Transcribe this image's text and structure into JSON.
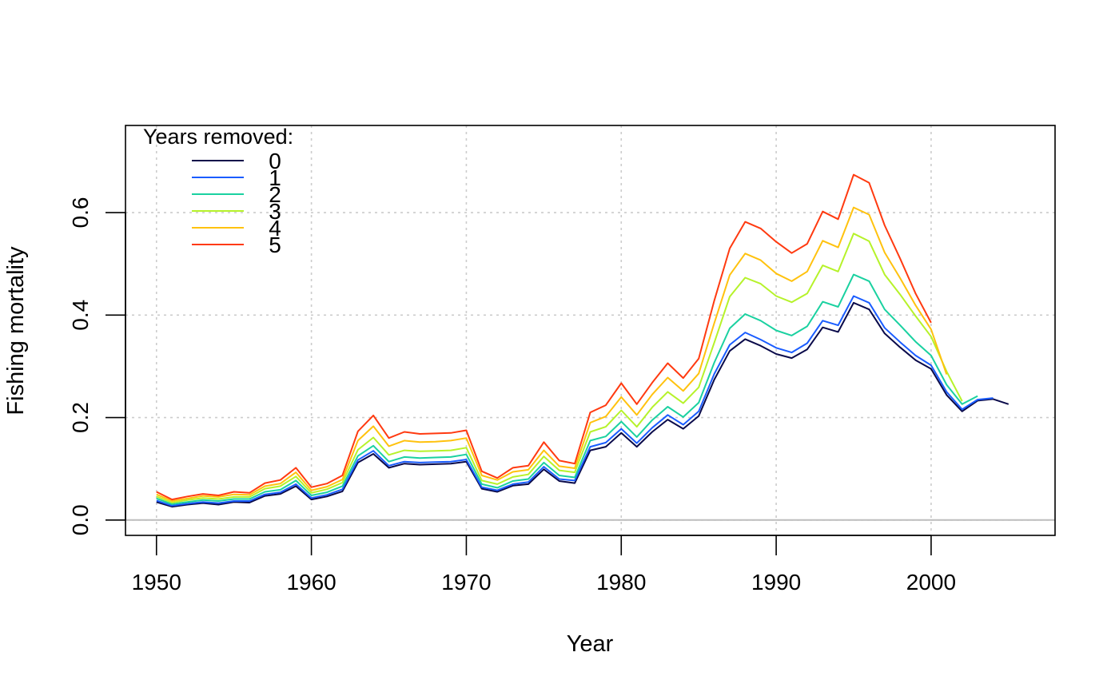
{
  "chart_data": {
    "type": "line",
    "title": "",
    "xlabel": "Year",
    "ylabel": "Fishing mortality",
    "xlim": [
      1948,
      2008
    ],
    "ylim": [
      -0.03,
      0.77
    ],
    "xticks": [
      1950,
      1960,
      1970,
      1980,
      1990,
      2000
    ],
    "xtick_labels": [
      "1950",
      "1960",
      "1970",
      "1980",
      "1990",
      "2000"
    ],
    "yticks": [
      0.0,
      0.2,
      0.4,
      0.6
    ],
    "ytick_labels": [
      "0.0",
      "0.2",
      "0.4",
      "0.6"
    ],
    "grid": true,
    "zero_line": true,
    "legend": {
      "title": "Years removed:",
      "position": "top-left"
    },
    "x_start": 1950,
    "series": [
      {
        "name": "0",
        "color": "#0a0a4a",
        "values": [
          0.035,
          0.026,
          0.03,
          0.033,
          0.03,
          0.035,
          0.034,
          0.047,
          0.051,
          0.066,
          0.04,
          0.046,
          0.056,
          0.112,
          0.129,
          0.102,
          0.11,
          0.108,
          0.109,
          0.11,
          0.114,
          0.061,
          0.055,
          0.067,
          0.07,
          0.099,
          0.076,
          0.072,
          0.136,
          0.143,
          0.17,
          0.143,
          0.172,
          0.196,
          0.178,
          0.203,
          0.274,
          0.33,
          0.353,
          0.34,
          0.324,
          0.316,
          0.333,
          0.376,
          0.367,
          0.424,
          0.411,
          0.364,
          0.337,
          0.312,
          0.295,
          0.244,
          0.212,
          0.233,
          0.236,
          0.226
        ]
      },
      {
        "name": "1",
        "color": "#1a5cff",
        "values": [
          0.038,
          0.028,
          0.032,
          0.035,
          0.033,
          0.037,
          0.037,
          0.05,
          0.054,
          0.07,
          0.043,
          0.049,
          0.06,
          0.117,
          0.135,
          0.106,
          0.114,
          0.112,
          0.113,
          0.114,
          0.118,
          0.064,
          0.058,
          0.07,
          0.074,
          0.104,
          0.08,
          0.077,
          0.143,
          0.151,
          0.178,
          0.15,
          0.18,
          0.205,
          0.186,
          0.212,
          0.285,
          0.342,
          0.366,
          0.352,
          0.336,
          0.327,
          0.345,
          0.389,
          0.38,
          0.437,
          0.424,
          0.375,
          0.347,
          0.321,
          0.302,
          0.25,
          0.216,
          0.235,
          0.238
        ]
      },
      {
        "name": "2",
        "color": "#1ad1a0",
        "values": [
          0.042,
          0.031,
          0.035,
          0.039,
          0.037,
          0.041,
          0.041,
          0.055,
          0.059,
          0.077,
          0.048,
          0.054,
          0.066,
          0.125,
          0.145,
          0.114,
          0.123,
          0.121,
          0.122,
          0.123,
          0.128,
          0.07,
          0.063,
          0.076,
          0.08,
          0.112,
          0.087,
          0.083,
          0.155,
          0.163,
          0.192,
          0.162,
          0.195,
          0.221,
          0.201,
          0.229,
          0.307,
          0.374,
          0.402,
          0.389,
          0.37,
          0.36,
          0.378,
          0.426,
          0.416,
          0.479,
          0.466,
          0.411,
          0.38,
          0.348,
          0.321,
          0.264,
          0.226,
          0.242
        ]
      },
      {
        "name": "3",
        "color": "#b6f22a",
        "values": [
          0.046,
          0.034,
          0.039,
          0.043,
          0.041,
          0.045,
          0.045,
          0.061,
          0.066,
          0.085,
          0.053,
          0.06,
          0.073,
          0.137,
          0.161,
          0.127,
          0.136,
          0.134,
          0.135,
          0.136,
          0.141,
          0.077,
          0.07,
          0.084,
          0.089,
          0.124,
          0.097,
          0.093,
          0.172,
          0.182,
          0.214,
          0.182,
          0.22,
          0.25,
          0.228,
          0.259,
          0.346,
          0.436,
          0.473,
          0.461,
          0.437,
          0.425,
          0.442,
          0.497,
          0.485,
          0.559,
          0.544,
          0.479,
          0.44,
          0.398,
          0.358,
          0.29,
          0.232
        ]
      },
      {
        "name": "4",
        "color": "#ffc20e",
        "values": [
          0.05,
          0.037,
          0.042,
          0.047,
          0.045,
          0.05,
          0.049,
          0.066,
          0.071,
          0.093,
          0.058,
          0.065,
          0.079,
          0.155,
          0.183,
          0.144,
          0.155,
          0.152,
          0.153,
          0.155,
          0.16,
          0.087,
          0.078,
          0.094,
          0.098,
          0.136,
          0.105,
          0.101,
          0.19,
          0.202,
          0.24,
          0.205,
          0.245,
          0.278,
          0.252,
          0.286,
          0.384,
          0.478,
          0.52,
          0.507,
          0.481,
          0.466,
          0.485,
          0.545,
          0.532,
          0.61,
          0.596,
          0.522,
          0.472,
          0.419,
          0.372,
          0.284
        ]
      },
      {
        "name": "5",
        "color": "#ff3a10",
        "values": [
          0.055,
          0.04,
          0.046,
          0.051,
          0.048,
          0.055,
          0.053,
          0.072,
          0.078,
          0.102,
          0.064,
          0.071,
          0.087,
          0.173,
          0.204,
          0.16,
          0.172,
          0.168,
          0.169,
          0.17,
          0.175,
          0.095,
          0.082,
          0.102,
          0.106,
          0.152,
          0.116,
          0.11,
          0.21,
          0.224,
          0.267,
          0.226,
          0.268,
          0.306,
          0.277,
          0.315,
          0.428,
          0.53,
          0.582,
          0.569,
          0.543,
          0.521,
          0.539,
          0.602,
          0.587,
          0.674,
          0.658,
          0.575,
          0.51,
          0.442,
          0.385
        ]
      }
    ]
  }
}
